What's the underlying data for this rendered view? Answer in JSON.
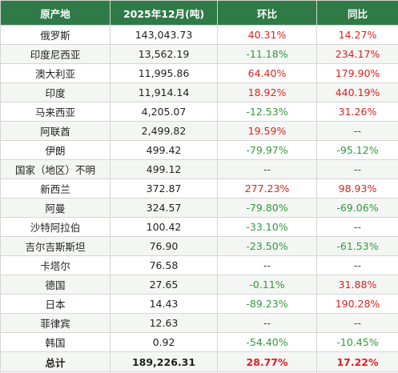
{
  "table": {
    "headers": [
      "原产地",
      "2025年12月(吨)",
      "环比",
      "同比"
    ],
    "rows": [
      {
        "origin": "俄罗斯",
        "volume": "143,043.73",
        "mom": "40.31%",
        "mom_dir": "pos",
        "yoy": "14.27%",
        "yoy_dir": "pos"
      },
      {
        "origin": "印度尼西亚",
        "volume": "13,562.19",
        "mom": "-11.18%",
        "mom_dir": "neg",
        "yoy": "234.17%",
        "yoy_dir": "pos"
      },
      {
        "origin": "澳大利亚",
        "volume": "11,995.86",
        "mom": "64.40%",
        "mom_dir": "pos",
        "yoy": "179.90%",
        "yoy_dir": "pos"
      },
      {
        "origin": "印度",
        "volume": "11,914.14",
        "mom": "18.92%",
        "mom_dir": "pos",
        "yoy": "440.19%",
        "yoy_dir": "pos"
      },
      {
        "origin": "马来西亚",
        "volume": "4,205.07",
        "mom": "-12.53%",
        "mom_dir": "neg",
        "yoy": "31.26%",
        "yoy_dir": "pos"
      },
      {
        "origin": "阿联酋",
        "volume": "2,499.82",
        "mom": "19.59%",
        "mom_dir": "pos",
        "yoy": "--",
        "yoy_dir": "na"
      },
      {
        "origin": "伊朗",
        "volume": "499.42",
        "mom": "-79.97%",
        "mom_dir": "neg",
        "yoy": "-95.12%",
        "yoy_dir": "neg"
      },
      {
        "origin": "国家（地区）不明",
        "volume": "499.12",
        "mom": "--",
        "mom_dir": "na",
        "yoy": "--",
        "yoy_dir": "na"
      },
      {
        "origin": "新西兰",
        "volume": "372.87",
        "mom": "277.23%",
        "mom_dir": "pos",
        "yoy": "98.93%",
        "yoy_dir": "pos"
      },
      {
        "origin": "阿曼",
        "volume": "324.57",
        "mom": "-79.80%",
        "mom_dir": "neg",
        "yoy": "-69.06%",
        "yoy_dir": "neg"
      },
      {
        "origin": "沙特阿拉伯",
        "volume": "100.42",
        "mom": "-33.10%",
        "mom_dir": "neg",
        "yoy": "--",
        "yoy_dir": "na"
      },
      {
        "origin": "吉尔吉斯斯坦",
        "volume": "76.90",
        "mom": "-23.50%",
        "mom_dir": "neg",
        "yoy": "-61.53%",
        "yoy_dir": "neg"
      },
      {
        "origin": "卡塔尔",
        "volume": "76.58",
        "mom": "--",
        "mom_dir": "na",
        "yoy": "--",
        "yoy_dir": "na"
      },
      {
        "origin": "德国",
        "volume": "27.65",
        "mom": "-0.11%",
        "mom_dir": "neg",
        "yoy": "31.88%",
        "yoy_dir": "pos"
      },
      {
        "origin": "日本",
        "volume": "14.43",
        "mom": "-89.23%",
        "mom_dir": "neg",
        "yoy": "190.28%",
        "yoy_dir": "pos"
      },
      {
        "origin": "菲律宾",
        "volume": "12.63",
        "mom": "--",
        "mom_dir": "na",
        "yoy": "--",
        "yoy_dir": "na"
      },
      {
        "origin": "韩国",
        "volume": "0.92",
        "mom": "-54.40%",
        "mom_dir": "neg",
        "yoy": "-10.45%",
        "yoy_dir": "neg"
      }
    ],
    "total": {
      "origin": "总计",
      "volume": "189,226.31",
      "mom": "28.77%",
      "mom_dir": "pos",
      "yoy": "17.22%",
      "yoy_dir": "pos"
    }
  },
  "colors": {
    "header_bg": "#2f7a47",
    "header_text": "#ffffff",
    "positive": "#e02020",
    "negative": "#2f9a3a",
    "stripe": "#f4f6f4"
  }
}
